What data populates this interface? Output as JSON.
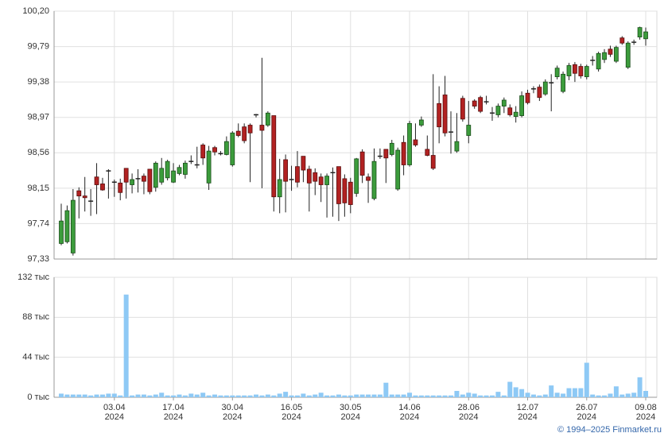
{
  "chart_data": {
    "type": "candlestick",
    "x": [
      "21.03.2024",
      "22.03.2024",
      "25.03.2024",
      "26.03.2024",
      "27.03.2024",
      "28.03.2024",
      "29.03.2024",
      "01.04.2024",
      "02.04.2024",
      "03.04.2024",
      "04.04.2024",
      "05.04.2024",
      "08.04.2024",
      "09.04.2024",
      "10.04.2024",
      "11.04.2024",
      "12.04.2024",
      "15.04.2024",
      "16.04.2024",
      "17.04.2024",
      "18.04.2024",
      "19.04.2024",
      "22.04.2024",
      "23.04.2024",
      "24.04.2024",
      "25.04.2024",
      "26.04.2024",
      "27.04.2024",
      "29.04.2024",
      "30.04.2024",
      "02.05.2024",
      "03.05.2024",
      "06.05.2024",
      "07.05.2024",
      "08.05.2024",
      "10.05.2024",
      "13.05.2024",
      "14.05.2024",
      "15.05.2024",
      "16.05.2024",
      "17.05.2024",
      "20.05.2024",
      "21.05.2024",
      "22.05.2024",
      "23.05.2024",
      "24.05.2024",
      "27.05.2024",
      "28.05.2024",
      "29.05.2024",
      "30.05.2024",
      "31.05.2024",
      "03.06.2024",
      "04.06.2024",
      "05.06.2024",
      "06.06.2024",
      "07.06.2024",
      "10.06.2024",
      "11.06.2024",
      "13.06.2024",
      "14.06.2024",
      "17.06.2024",
      "18.06.2024",
      "19.06.2024",
      "20.06.2024",
      "21.06.2024",
      "24.06.2024",
      "25.06.2024",
      "26.06.2024",
      "27.06.2024",
      "28.06.2024",
      "01.07.2024",
      "02.07.2024",
      "03.07.2024",
      "04.07.2024",
      "05.07.2024",
      "08.07.2024",
      "09.07.2024",
      "10.07.2024",
      "11.07.2024",
      "12.07.2024",
      "15.07.2024",
      "16.07.2024",
      "17.07.2024",
      "18.07.2024",
      "19.07.2024",
      "22.07.2024",
      "23.07.2024",
      "24.07.2024",
      "25.07.2024",
      "26.07.2024",
      "29.07.2024",
      "30.07.2024",
      "31.07.2024",
      "01.08.2024",
      "02.08.2024",
      "05.08.2024",
      "06.08.2024",
      "07.08.2024",
      "08.08.2024",
      "09.08.2024"
    ],
    "open": [
      97.51,
      97.53,
      97.4,
      98.12,
      98.06,
      98.0,
      98.28,
      98.2,
      98.35,
      98.22,
      98.21,
      98.38,
      98.19,
      98.26,
      98.29,
      98.37,
      98.16,
      98.22,
      98.27,
      98.22,
      98.32,
      98.31,
      98.46,
      98.42,
      98.65,
      98.21,
      98.62,
      98.55,
      98.54,
      98.42,
      98.81,
      98.86,
      98.88,
      99.0,
      98.88,
      98.88,
      98.99,
      98.05,
      98.48,
      98.25,
      98.4,
      98.52,
      98.37,
      98.33,
      98.28,
      98.19,
      98.33,
      98.4,
      98.26,
      98.22,
      98.09,
      98.57,
      98.28,
      98.03,
      98.52,
      98.6,
      98.54,
      98.14,
      98.68,
      98.42,
      98.71,
      98.88,
      98.6,
      98.53,
      99.13,
      99.23,
      98.8,
      98.58,
      99.19,
      98.76,
      99.16,
      99.2,
      99.15,
      99.02,
      99.0,
      99.1,
      99.08,
      98.98,
      98.99,
      99.25,
      99.3,
      99.32,
      99.24,
      99.37,
      99.44,
      99.27,
      99.45,
      99.58,
      99.56,
      99.44,
      99.63,
      99.53,
      99.64,
      99.76,
      99.62,
      99.89,
      99.55,
      99.84,
      99.9,
      99.88
    ],
    "high": [
      97.97,
      97.95,
      98.14,
      98.16,
      98.28,
      98.14,
      98.44,
      98.27,
      98.37,
      98.25,
      98.26,
      98.38,
      98.32,
      98.37,
      98.32,
      98.37,
      98.46,
      98.5,
      98.48,
      98.44,
      98.42,
      98.47,
      98.53,
      98.63,
      98.67,
      98.64,
      98.64,
      98.58,
      98.75,
      98.81,
      98.9,
      98.9,
      98.9,
      99.01,
      99.66,
      99.04,
      98.99,
      98.49,
      98.54,
      98.41,
      98.58,
      98.52,
      98.41,
      98.38,
      98.32,
      98.32,
      98.39,
      98.4,
      98.31,
      98.27,
      98.5,
      98.6,
      98.32,
      98.61,
      98.61,
      98.6,
      98.71,
      98.62,
      98.76,
      98.93,
      98.9,
      98.98,
      98.76,
      99.47,
      99.33,
      99.45,
      99.04,
      99.02,
      99.22,
      99.16,
      99.18,
      99.22,
      99.22,
      99.09,
      99.13,
      99.2,
      99.12,
      99.1,
      99.27,
      99.29,
      99.33,
      99.35,
      99.41,
      99.47,
      99.57,
      99.5,
      99.6,
      99.61,
      99.59,
      99.58,
      99.68,
      99.73,
      99.76,
      99.8,
      99.8,
      99.91,
      99.85,
      99.87,
      100.02,
      100.01
    ],
    "low": [
      97.49,
      97.51,
      97.37,
      97.8,
      97.88,
      97.83,
      97.85,
      98.12,
      98.03,
      98.05,
      98.01,
      98.03,
      98.09,
      98.1,
      98.08,
      98.08,
      98.11,
      98.19,
      98.24,
      98.21,
      98.3,
      98.26,
      98.43,
      98.38,
      98.42,
      98.13,
      98.53,
      98.53,
      98.53,
      98.4,
      98.74,
      98.67,
      98.22,
      98.97,
      98.15,
      98.86,
      97.88,
      97.86,
      97.87,
      98.12,
      98.16,
      98.22,
      97.88,
      98.07,
      97.99,
      97.81,
      97.82,
      97.77,
      97.82,
      97.86,
      98.05,
      98.21,
      97.98,
      98.01,
      98.49,
      98.21,
      98.52,
      98.12,
      98.3,
      98.4,
      98.63,
      98.86,
      98.52,
      98.36,
      98.67,
      98.75,
      98.55,
      98.56,
      98.92,
      98.67,
      99.07,
      99.02,
      99.12,
      98.93,
      98.97,
      99.02,
      98.98,
      98.91,
      98.97,
      99.12,
      99.25,
      99.16,
      99.22,
      99.04,
      99.41,
      99.25,
      99.4,
      99.38,
      99.42,
      99.41,
      99.57,
      99.5,
      99.6,
      99.67,
      99.6,
      99.81,
      99.53,
      99.81,
      99.87,
      99.8
    ],
    "close": [
      97.77,
      97.89,
      98.01,
      98.06,
      98.04,
      98.0,
      98.19,
      98.13,
      98.35,
      98.21,
      98.1,
      98.22,
      98.25,
      98.26,
      98.23,
      98.11,
      98.44,
      98.38,
      98.46,
      98.35,
      98.39,
      98.44,
      98.45,
      98.41,
      98.5,
      98.58,
      98.57,
      98.55,
      98.69,
      98.79,
      98.76,
      98.7,
      98.79,
      98.99,
      98.82,
      99.02,
      98.05,
      98.25,
      98.23,
      98.24,
      98.22,
      98.36,
      98.21,
      98.23,
      98.19,
      98.29,
      98.33,
      97.97,
      97.98,
      97.96,
      98.49,
      98.3,
      98.24,
      98.46,
      98.52,
      98.5,
      98.67,
      98.59,
      98.42,
      98.9,
      98.65,
      98.94,
      98.53,
      98.38,
      98.86,
      98.79,
      98.8,
      98.69,
      98.95,
      98.88,
      99.1,
      99.04,
      99.15,
      99.02,
      99.1,
      99.17,
      99.0,
      99.03,
      99.22,
      99.14,
      99.3,
      99.2,
      99.38,
      99.37,
      99.54,
      99.47,
      99.57,
      99.48,
      99.45,
      99.56,
      99.63,
      99.71,
      99.72,
      99.7,
      99.78,
      99.83,
      99.83,
      99.84,
      100.01,
      99.96
    ],
    "up_color": "#3c9c3c",
    "down_color": "#b22222",
    "ylim": [
      97.33,
      100.2
    ],
    "yticks": [
      {
        "value": 97.33,
        "label": "97,33"
      },
      {
        "value": 97.74,
        "label": "97,74"
      },
      {
        "value": 98.15,
        "label": "98,15"
      },
      {
        "value": 98.56,
        "label": "98,56"
      },
      {
        "value": 98.97,
        "label": "98,97"
      },
      {
        "value": 99.38,
        "label": "99,38"
      },
      {
        "value": 99.79,
        "label": "99,79"
      },
      {
        "value": 100.2,
        "label": "100,20"
      }
    ],
    "xticks": [
      {
        "value": "03.04.2024",
        "label": "03.04\n2024"
      },
      {
        "value": "17.04.2024",
        "label": "17.04\n2024"
      },
      {
        "value": "30.04.2024",
        "label": "30.04\n2024"
      },
      {
        "value": "16.05.2024",
        "label": "16.05\n2024"
      },
      {
        "value": "30.05.2024",
        "label": "30.05\n2024"
      },
      {
        "value": "14.06.2024",
        "label": "14.06\n2024"
      },
      {
        "value": "28.06.2024",
        "label": "28.06\n2024"
      },
      {
        "value": "12.07.2024",
        "label": "12.07\n2024"
      },
      {
        "value": "26.07.2024",
        "label": "26.07\n2024"
      },
      {
        "value": "09.08.2024",
        "label": "09.08\n2024"
      }
    ],
    "grid": true,
    "volume": {
      "values": [
        4,
        3,
        3,
        3,
        3,
        2,
        3,
        3,
        4,
        4,
        2,
        113,
        2,
        3,
        3,
        2,
        3,
        5,
        2,
        2,
        3,
        2,
        4,
        3,
        5,
        2,
        3,
        2,
        2,
        2,
        2,
        2,
        2,
        3,
        2,
        3,
        2,
        4,
        6,
        2,
        2,
        4,
        2,
        3,
        5,
        2,
        2,
        3,
        2,
        2,
        3,
        3,
        3,
        3,
        3,
        16,
        3,
        3,
        3,
        5,
        2,
        2,
        2,
        2,
        2,
        2,
        2,
        7,
        3,
        5,
        4,
        2,
        2,
        2,
        6,
        2,
        17,
        11,
        9,
        5,
        3,
        2,
        3,
        13,
        5,
        4,
        10,
        10,
        10,
        38,
        3,
        2,
        2,
        4,
        12,
        3,
        4,
        5,
        22,
        7
      ],
      "color": "#8ec9f5",
      "ylim": [
        0,
        132
      ],
      "yticks": [
        {
          "value": 0,
          "label": "0 тыс"
        },
        {
          "value": 44,
          "label": "44 тыс"
        },
        {
          "value": 88,
          "label": "88 тыс"
        },
        {
          "value": 132,
          "label": "132 тыс"
        }
      ]
    },
    "source": "© 1994–2025 Finmarket.ru"
  }
}
